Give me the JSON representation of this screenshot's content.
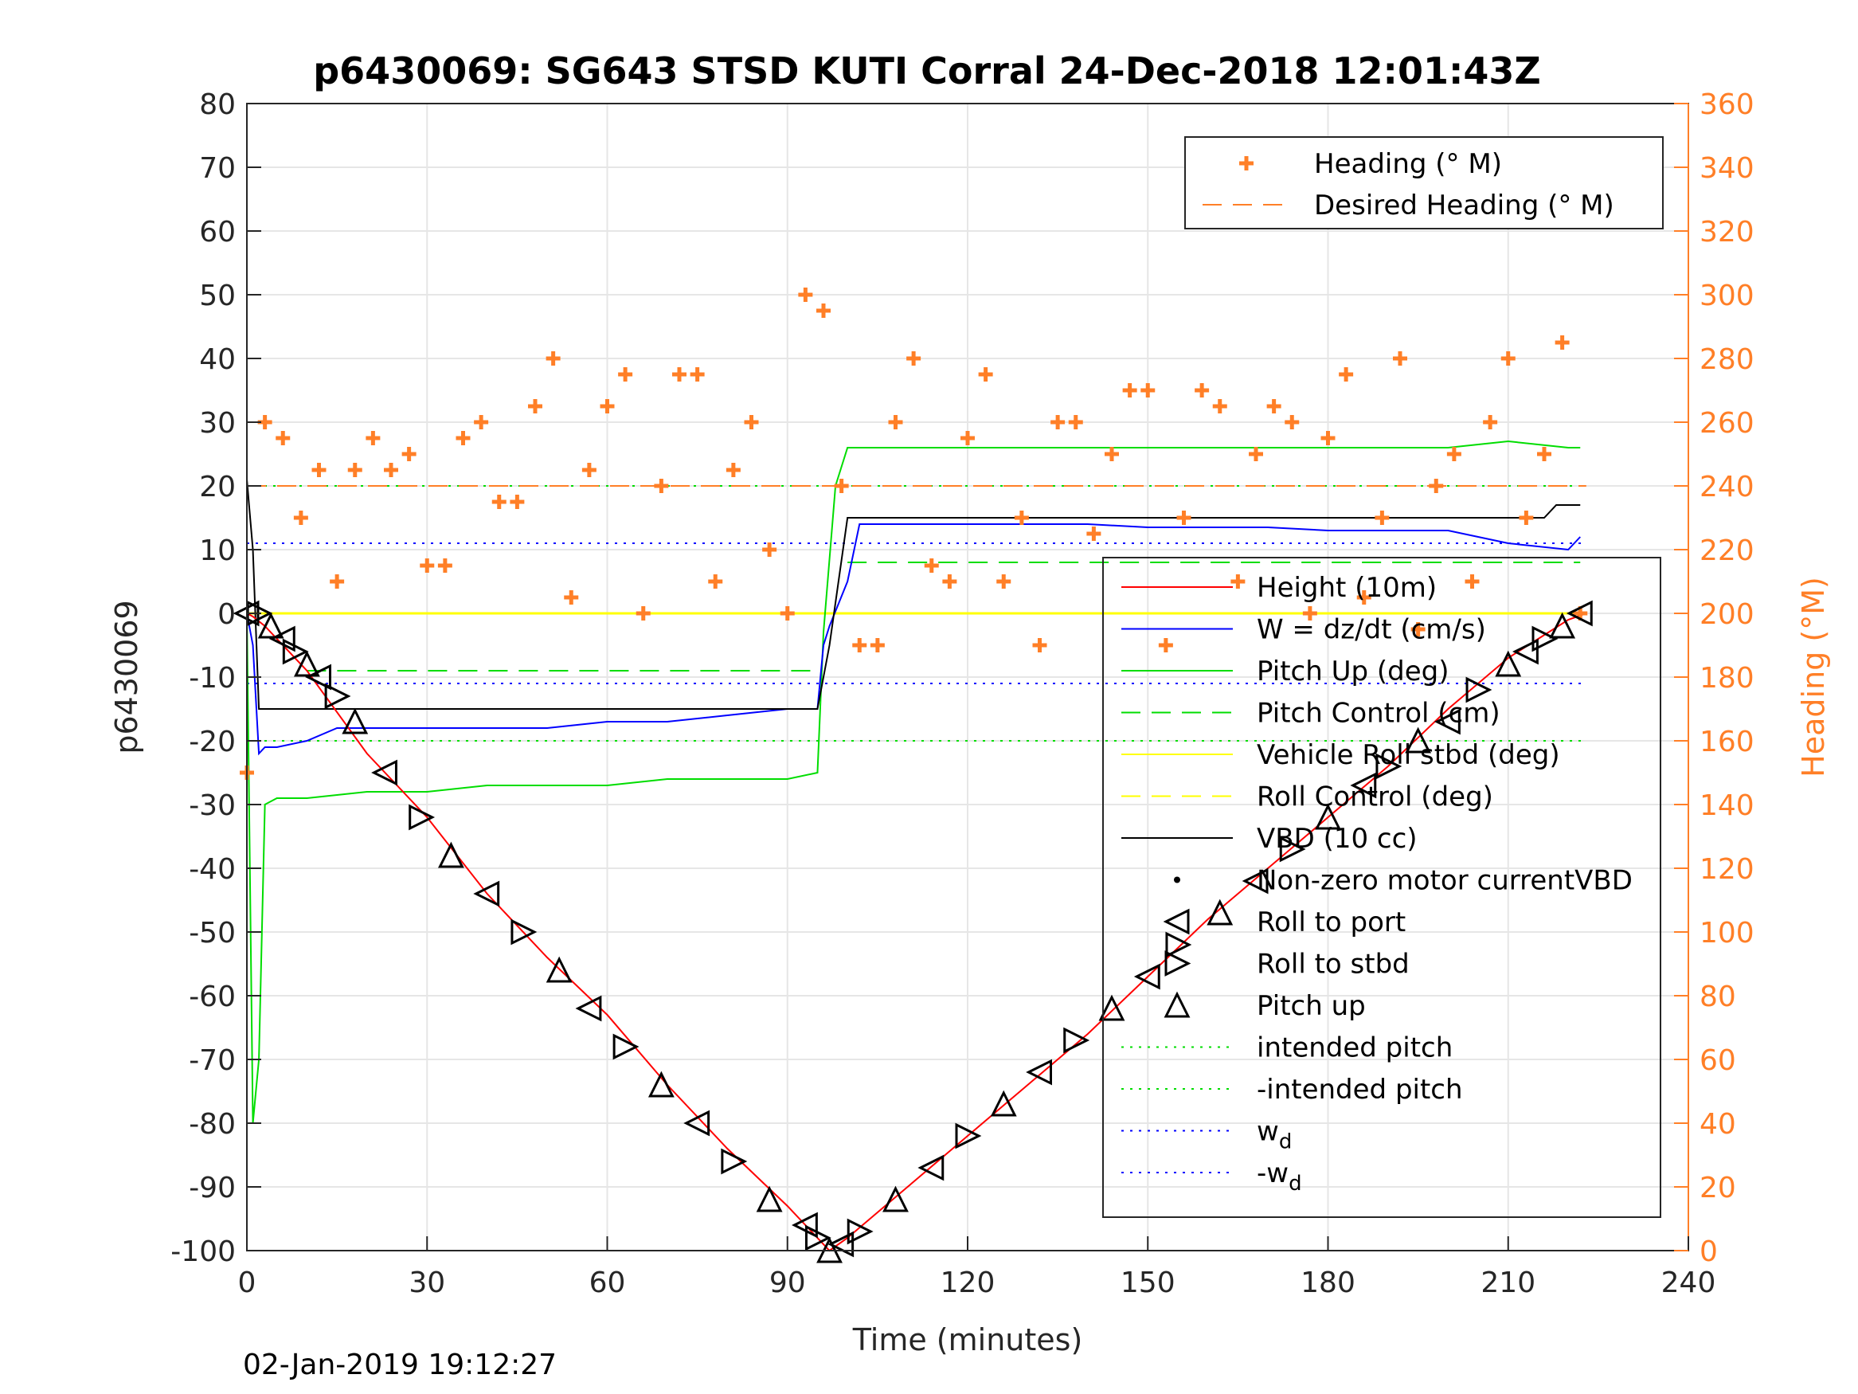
{
  "chart_data": {
    "type": "line",
    "title": "p6430069: SG643 STSD KUTI Corral 24-Dec-2018 12:01:43Z",
    "xlabel": "Time (minutes)",
    "ylabel": "p6430069",
    "y2label": "Heading (°M)",
    "footer": "02-Jan-2019 19:12:27",
    "xlim": [
      0,
      240
    ],
    "ylim": [
      -100,
      80
    ],
    "y2lim": [
      0,
      360
    ],
    "xticks": [
      "0",
      "30",
      "60",
      "90",
      "120",
      "150",
      "180",
      "210",
      "240"
    ],
    "yticks": [
      "80",
      "70",
      "60",
      "50",
      "40",
      "30",
      "20",
      "10",
      "0",
      "-10",
      "-20",
      "-30",
      "-40",
      "-50",
      "-60",
      "-70",
      "-80",
      "-90",
      "-100"
    ],
    "y2ticks": [
      "360",
      "340",
      "320",
      "300",
      "280",
      "260",
      "240",
      "220",
      "200",
      "180",
      "160",
      "140",
      "120",
      "100",
      "80",
      "60",
      "40",
      "20",
      "0"
    ],
    "grid": true,
    "colors": {
      "height": "#ff0000",
      "w": "#0000ff",
      "pitch": "#00dd00",
      "roll": "#ffff00",
      "vbd": "#000000",
      "heading": "#ff7f27",
      "axis_right": "#ff7f27"
    },
    "legend_heading": {
      "placement": "top-right",
      "entries": [
        {
          "label": "Heading (° M)",
          "style": "plus",
          "color": "#ff7f27"
        },
        {
          "label": "Desired Heading (° M)",
          "style": "dashed",
          "color": "#ff7f27"
        }
      ]
    },
    "legend_main": {
      "placement": "right",
      "entries": [
        {
          "label": "Height (10m)",
          "style": "solid",
          "color": "#ff0000"
        },
        {
          "label": "W = dz/dt (cm/s)",
          "style": "solid",
          "color": "#0000ff"
        },
        {
          "label": "Pitch Up (deg)",
          "style": "solid",
          "color": "#00dd00"
        },
        {
          "label": "Pitch Control (cm)",
          "style": "dashed",
          "color": "#00dd00"
        },
        {
          "label": "Vehicle Roll stbd (deg)",
          "style": "solid",
          "color": "#ffff00"
        },
        {
          "label": "Roll Control (deg)",
          "style": "dashed",
          "color": "#ffff00"
        },
        {
          "label": "VBD (10 cc)",
          "style": "solid",
          "color": "#000000"
        },
        {
          "label": "Non-zero motor currentVBD",
          "style": "dot",
          "color": "#000000"
        },
        {
          "label": "Roll to port",
          "style": "tri-left",
          "color": "#000000"
        },
        {
          "label": "Roll to stbd",
          "style": "tri-right",
          "color": "#000000"
        },
        {
          "label": "Pitch up",
          "style": "tri-up",
          "color": "#000000"
        },
        {
          "label": "intended pitch",
          "style": "dotted",
          "color": "#00dd00"
        },
        {
          "label": "-intended pitch",
          "style": "dotted",
          "color": "#00dd00"
        },
        {
          "label": "w",
          "sub": "d",
          "style": "dotted",
          "color": "#0000ff"
        },
        {
          "label": "-w",
          "sub": "d",
          "style": "dotted",
          "color": "#0000ff"
        }
      ]
    },
    "series": [
      {
        "key": "height",
        "x": [
          0,
          1,
          3,
          10,
          20,
          30,
          40,
          50,
          60,
          70,
          80,
          90,
          97,
          100,
          110,
          120,
          130,
          140,
          150,
          160,
          170,
          180,
          190,
          200,
          210,
          215,
          220,
          223
        ],
        "y": [
          0,
          -0.5,
          -2,
          -9,
          -22,
          -32,
          -44,
          -54,
          -63,
          -74,
          -84,
          -93,
          -100,
          -98,
          -90,
          -82,
          -74,
          -66,
          -57,
          -48,
          -40,
          -32,
          -24,
          -15,
          -7,
          -4,
          -1,
          0
        ]
      },
      {
        "key": "w",
        "x": [
          0,
          1,
          2,
          3,
          5,
          10,
          15,
          20,
          30,
          40,
          50,
          60,
          70,
          80,
          90,
          95,
          96,
          97,
          100,
          102,
          105,
          110,
          120,
          130,
          140,
          150,
          160,
          170,
          180,
          190,
          200,
          210,
          220,
          222
        ],
        "y": [
          0,
          -5,
          -22,
          -21,
          -21,
          -20,
          -18,
          -18,
          -18,
          -18,
          -18,
          -17,
          -17,
          -16,
          -15,
          -15,
          -5,
          -2,
          5,
          14,
          14,
          14,
          14,
          14,
          14,
          13.5,
          13.5,
          13.5,
          13,
          13,
          13,
          11,
          10,
          12
        ]
      },
      {
        "key": "pitch",
        "x": [
          0,
          1,
          2,
          3,
          5,
          10,
          20,
          30,
          40,
          50,
          60,
          70,
          80,
          90,
          95,
          96,
          98,
          100,
          110,
          120,
          140,
          160,
          180,
          200,
          210,
          220,
          222
        ],
        "y": [
          0,
          -80,
          -70,
          -30,
          -29,
          -29,
          -28,
          -28,
          -27,
          -27,
          -27,
          -26,
          -26,
          -26,
          -25,
          -3,
          20,
          26,
          26,
          26,
          26,
          26,
          26,
          26,
          27,
          26,
          26
        ]
      },
      {
        "key": "vbd",
        "x": [
          0,
          1,
          2,
          95,
          97,
          100,
          216,
          218,
          222
        ],
        "y": [
          21,
          10,
          -15,
          -15,
          -5,
          15,
          15,
          17,
          17
        ]
      },
      {
        "key": "heading",
        "x": [
          0,
          3,
          6,
          9,
          12,
          15,
          18,
          21,
          24,
          27,
          30,
          33,
          36,
          39,
          42,
          45,
          48,
          51,
          54,
          57,
          60,
          63,
          66,
          69,
          72,
          75,
          78,
          81,
          84,
          87,
          90,
          93,
          96,
          99,
          102,
          105,
          108,
          111,
          114,
          117,
          120,
          123,
          126,
          129,
          132,
          135,
          138,
          141,
          144,
          147,
          150,
          153,
          156,
          159,
          162,
          165,
          168,
          171,
          174,
          177,
          180,
          183,
          186,
          189,
          192,
          195,
          198,
          201,
          204,
          207,
          210,
          213,
          216,
          219,
          222
        ],
        "y": [
          150,
          260,
          255,
          230,
          245,
          210,
          245,
          255,
          245,
          250,
          215,
          215,
          255,
          260,
          235,
          235,
          265,
          280,
          205,
          245,
          265,
          275,
          200,
          240,
          275,
          275,
          210,
          245,
          260,
          220,
          200,
          300,
          295,
          240,
          190,
          190,
          260,
          280,
          215,
          210,
          255,
          275,
          210,
          230,
          190,
          260,
          260,
          225,
          250,
          270,
          270,
          190,
          230,
          270,
          265,
          210,
          250,
          265,
          260,
          200,
          255,
          275,
          205,
          230,
          280,
          195,
          240,
          250,
          210,
          260,
          280,
          230,
          250,
          285,
          200
        ]
      },
      {
        "key": "desired_heading",
        "x": [
          0,
          223
        ],
        "y": [
          240,
          240
        ]
      },
      {
        "key": "intended_pitch",
        "x": [
          0,
          223
        ],
        "y": [
          20,
          20
        ]
      },
      {
        "key": "neg_intended_pitch",
        "x": [
          0,
          223
        ],
        "y": [
          -20,
          -20
        ]
      },
      {
        "key": "wd",
        "x": [
          0,
          223
        ],
        "y": [
          11,
          11
        ]
      },
      {
        "key": "neg_wd",
        "x": [
          0,
          223
        ],
        "y": [
          -11,
          -11
        ]
      },
      {
        "key": "pitch_control_dive",
        "x": [
          10,
          95
        ],
        "y": [
          -9,
          -9
        ]
      },
      {
        "key": "pitch_control_climb",
        "x": [
          100,
          222
        ],
        "y": [
          8,
          8
        ]
      },
      {
        "key": "roll_control",
        "x": [
          0,
          223
        ],
        "y": [
          0,
          0
        ]
      }
    ],
    "markers": {
      "x": [
        0,
        2,
        4,
        6,
        8,
        10,
        12,
        15,
        18,
        23,
        29,
        34,
        40,
        46,
        52,
        57,
        63,
        69,
        75,
        81,
        87,
        93,
        95,
        97,
        99,
        102,
        108,
        114,
        120,
        126,
        132,
        138,
        144,
        150,
        155,
        162,
        168,
        174,
        180,
        186,
        190,
        195,
        200,
        205,
        210,
        213,
        216,
        219,
        222
      ],
      "y": [
        0,
        0,
        -2,
        -4,
        -6,
        -8,
        -10,
        -13,
        -17,
        -25,
        -32,
        -38,
        -44,
        -50,
        -56,
        -62,
        -68,
        -74,
        -80,
        -86,
        -92,
        -96,
        -98,
        -100,
        -99,
        -97,
        -92,
        -87,
        -82,
        -77,
        -72,
        -67,
        -62,
        -57,
        -52,
        -47,
        -42,
        -37,
        -32,
        -27,
        -24,
        -20,
        -17,
        -12,
        -8,
        -6,
        -4,
        -2,
        0
      ]
    }
  }
}
